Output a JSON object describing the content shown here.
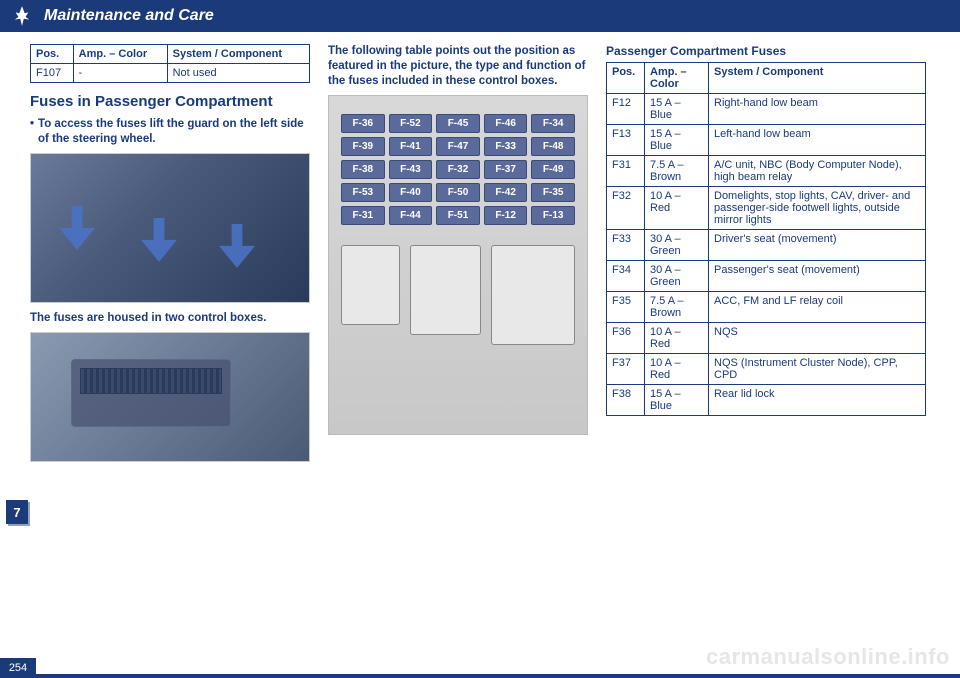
{
  "header": {
    "title": "Maintenance and Care"
  },
  "tab": "7",
  "page_number": "254",
  "watermark": "carmanualsonline.info",
  "col1": {
    "small_table": {
      "headers": [
        "Pos.",
        "Amp. – Color",
        "System / Component"
      ],
      "rows": [
        [
          "F107",
          "-",
          "Not used"
        ]
      ]
    },
    "section_title": "Fuses in Passenger Compartment",
    "bullet": "To access the fuses lift the guard on the left side of the steering wheel.",
    "caption": "The fuses are housed in two control boxes."
  },
  "col2": {
    "intro": "The following table points out the position as featured in the picture, the type and function of the fuses included in these control boxes.",
    "fuse_labels": [
      "F-36",
      "F-52",
      "F-45",
      "F-46",
      "F-34",
      "F-39",
      "F-41",
      "F-47",
      "F-33",
      "F-48",
      "F-38",
      "F-43",
      "F-32",
      "F-37",
      "F-49",
      "F-53",
      "F-40",
      "F-50",
      "F-42",
      "F-35",
      "F-31",
      "F-44",
      "F-51",
      "F-12",
      "F-13"
    ]
  },
  "col3": {
    "title": "Passenger Compartment Fuses",
    "headers": [
      "Pos.",
      "Amp. – Color",
      "System / Component"
    ],
    "rows": [
      [
        "F12",
        "15 A – Blue",
        "Right-hand low beam"
      ],
      [
        "F13",
        "15 A – Blue",
        "Left-hand low beam"
      ],
      [
        "F31",
        "7.5 A – Brown",
        "A/C unit, NBC (Body Computer Node), high beam relay"
      ],
      [
        "F32",
        "10 A – Red",
        "Domelights, stop lights, CAV, driver- and passenger-side footwell lights, outside mirror lights"
      ],
      [
        "F33",
        "30 A – Green",
        "Driver's seat (movement)"
      ],
      [
        "F34",
        "30 A – Green",
        "Passenger's seat (movement)"
      ],
      [
        "F35",
        "7.5 A – Brown",
        "ACC, FM and LF relay coil"
      ],
      [
        "F36",
        "10 A – Red",
        "NQS"
      ],
      [
        "F37",
        "10 A – Red",
        "NQS (Instrument Cluster Node), CPP, CPD"
      ],
      [
        "F38",
        "15 A – Blue",
        "Rear lid lock"
      ]
    ]
  }
}
